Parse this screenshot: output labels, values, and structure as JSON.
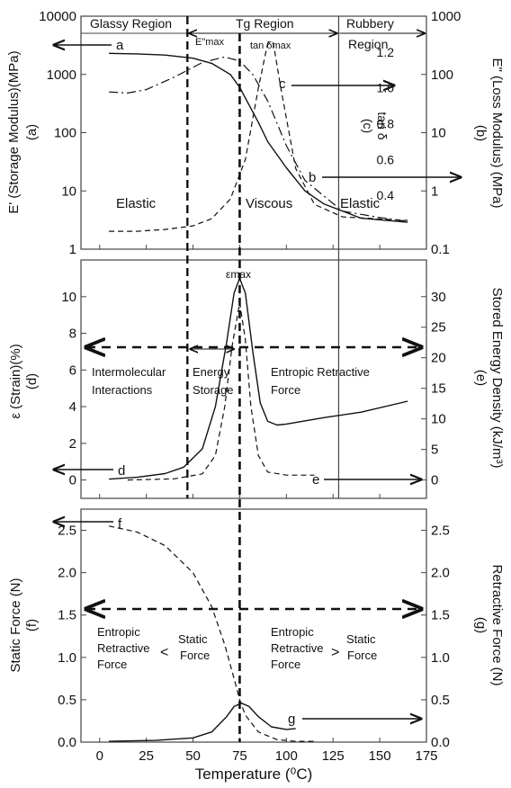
{
  "chart_data": [
    {
      "type": "line",
      "panel": "top",
      "xlim": [
        -10,
        175
      ],
      "x_ticks": [
        0,
        25,
        50,
        75,
        100,
        125,
        150,
        175
      ],
      "y_left": {
        "label": "E' (Storage Modulus)(MPa)",
        "sub": "(a)",
        "scale": "log",
        "range": [
          1,
          10000
        ],
        "ticks": [
          "1",
          "10",
          "100",
          "1000",
          "10000"
        ]
      },
      "y_right": {
        "label": "E\" (Loss Modulus) (MPa)",
        "sub": "(b)",
        "scale": "log",
        "range": [
          0.1,
          1000
        ],
        "ticks": [
          "0.1",
          "1",
          "10",
          "100",
          "1000"
        ]
      },
      "y_tan": {
        "label": "tan δ",
        "sub": "(c)",
        "range": [
          0.1,
          1.4
        ],
        "ticks": [
          "0.4",
          "0.6",
          "0.8",
          "1.0",
          "1.2"
        ]
      },
      "regions": [
        "Glassy Region",
        "Tg Region",
        "Rubbery",
        "Region"
      ],
      "region_bounds": [
        47,
        128
      ],
      "peaks": {
        "e2": "E\"max",
        "tan": "tan δmax"
      },
      "behaviors": [
        "Elastic",
        "Viscous",
        "Elastic"
      ],
      "series": [
        {
          "key": "a",
          "axis": "left",
          "style": "solid",
          "x": [
            5,
            20,
            35,
            50,
            60,
            70,
            75,
            80,
            85,
            90,
            100,
            110,
            120,
            140,
            165
          ],
          "y": [
            2300,
            2250,
            2150,
            1900,
            1550,
            1000,
            600,
            300,
            150,
            70,
            25,
            10,
            6,
            3.4,
            2.9
          ]
        },
        {
          "key": "b",
          "axis": "right",
          "style": "dash-dot",
          "x": [
            5,
            15,
            25,
            40,
            55,
            67,
            75,
            82,
            90,
            100,
            110,
            130,
            150,
            165
          ],
          "y": [
            50,
            48,
            55,
            90,
            160,
            200,
            170,
            100,
            35,
            6,
            1.5,
            0.45,
            0.35,
            0.3
          ]
        },
        {
          "key": "c",
          "axis": "tan",
          "style": "dashed",
          "x": [
            5,
            20,
            35,
            50,
            60,
            70,
            78,
            85,
            90,
            93,
            97,
            105,
            115,
            130,
            165
          ],
          "y": [
            0.2,
            0.2,
            0.21,
            0.23,
            0.27,
            0.38,
            0.6,
            1.0,
            1.25,
            1.25,
            1.0,
            0.55,
            0.35,
            0.28,
            0.26
          ]
        }
      ],
      "annotations": [
        "a",
        "b",
        "c"
      ]
    },
    {
      "type": "line",
      "panel": "middle",
      "xlim": [
        -10,
        175
      ],
      "y_left": {
        "label": "ε (Strain)(%)",
        "sub": "(d)",
        "range": [
          -1,
          12
        ],
        "ticks": [
          "0",
          "2",
          "4",
          "6",
          "8",
          "10"
        ]
      },
      "y_right": {
        "label": "Stored Energy Density (kJ/m³)",
        "sub": "(e)",
        "range": [
          -3,
          36
        ],
        "ticks": [
          "0",
          "5",
          "10",
          "15",
          "20",
          "25",
          "30"
        ]
      },
      "peak_label": "εmax",
      "text_labels": [
        "Intermolecular",
        "Interactions",
        "Energy",
        "Storage",
        "Entropic Retractive",
        "Force"
      ],
      "series": [
        {
          "key": "d",
          "axis": "left",
          "style": "solid",
          "x": [
            5,
            20,
            35,
            45,
            55,
            62,
            68,
            72,
            75,
            78,
            82,
            86,
            90,
            95,
            100,
            120,
            140,
            165
          ],
          "y": [
            0.05,
            0.15,
            0.35,
            0.7,
            1.7,
            4.0,
            7.5,
            10.2,
            11.0,
            10.2,
            7.0,
            4.2,
            3.2,
            3.0,
            3.05,
            3.4,
            3.7,
            4.3
          ]
        },
        {
          "key": "e",
          "axis": "right",
          "style": "dashed",
          "x": [
            15,
            40,
            55,
            62,
            67,
            71,
            75,
            78,
            81,
            85,
            90,
            100,
            115
          ],
          "y": [
            0,
            0.2,
            1.0,
            4.0,
            12,
            22,
            29,
            23,
            12,
            4,
            1.3,
            0.8,
            0.8
          ]
        }
      ],
      "annotations": [
        "d",
        "e"
      ]
    },
    {
      "type": "line",
      "panel": "bottom",
      "xlim": [
        -10,
        175
      ],
      "xlabel": "Temperature (⁰C)",
      "y_left": {
        "label": "Static Force (N)",
        "sub": "(f)",
        "range": [
          0,
          2.75
        ],
        "ticks": [
          "0.0",
          "0.5",
          "1.0",
          "1.5",
          "2.0",
          "2.5"
        ]
      },
      "y_right": {
        "label": "Retractive Force (N)",
        "sub": "(g)",
        "range": [
          0,
          2.75
        ],
        "ticks": [
          "0.0",
          "0.5",
          "1.0",
          "1.5",
          "2.0",
          "2.5"
        ]
      },
      "text_labels": [
        "Entropic",
        "Retractive",
        "Force",
        "<",
        "Static",
        "Force",
        "Entropic",
        "Retractive",
        "Force",
        ">",
        "Static",
        "Force"
      ],
      "series": [
        {
          "key": "f",
          "axis": "left",
          "style": "dashed",
          "x": [
            5,
            20,
            35,
            50,
            60,
            67,
            72,
            75,
            78,
            85,
            95,
            105,
            115
          ],
          "y": [
            2.55,
            2.48,
            2.32,
            2.0,
            1.6,
            1.15,
            0.75,
            0.5,
            0.32,
            0.12,
            0.03,
            0.01,
            0.01
          ]
        },
        {
          "key": "g",
          "axis": "right",
          "style": "solid",
          "x": [
            5,
            30,
            50,
            60,
            68,
            72,
            76,
            80,
            85,
            92,
            100,
            105
          ],
          "y": [
            0.01,
            0.02,
            0.05,
            0.12,
            0.3,
            0.42,
            0.46,
            0.42,
            0.3,
            0.18,
            0.15,
            0.16
          ]
        }
      ],
      "annotations": [
        "f",
        "g"
      ]
    }
  ],
  "x_tick_labels": [
    "0",
    "25",
    "50",
    "75",
    "100",
    "125",
    "150",
    "175"
  ]
}
